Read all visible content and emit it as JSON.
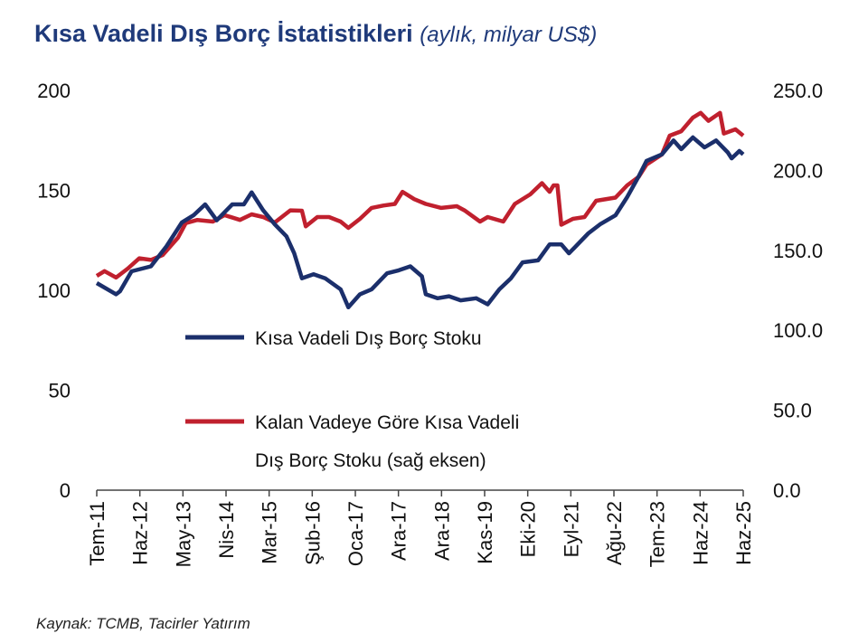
{
  "title": {
    "main": "Kısa Vadeli Dış Borç İstatistikleri",
    "sub": "(aylık, milyar US$)"
  },
  "source": "Kaynak: TCMB, Tacirler Yatırım",
  "chart_data": {
    "type": "line",
    "title": "Kısa Vadeli Dış Borç İstatistikleri (aylık, milyar US$)",
    "x_unit": "months since Tem-11",
    "x_range": [
      0,
      167
    ],
    "x_ticks": [
      "Tem-11",
      "Haz-12",
      "May-13",
      "Nis-14",
      "Mar-15",
      "Şub-16",
      "Oca-17",
      "Ara-17",
      "Ara-18",
      "Kas-19",
      "Eki-20",
      "Eyl-21",
      "Ağu-22",
      "Tem-23",
      "Haz-24",
      "Haz-25"
    ],
    "y_left": {
      "range": [
        0,
        200
      ],
      "ticks": [
        "0",
        "50",
        "100",
        "150",
        "200"
      ]
    },
    "y_right": {
      "range": [
        0,
        250
      ],
      "ticks": [
        "0.0",
        "50.0",
        "100.0",
        "150.0",
        "200.0",
        "250.0"
      ]
    },
    "grid": false,
    "legend_placement": "center-left",
    "series": [
      {
        "name": "Kısa Vadeli Dış Borç Stoku",
        "axis": "left",
        "color": "#1b2f6b",
        "points": [
          [
            0,
            103.6
          ],
          [
            5,
            98
          ],
          [
            6,
            99.5
          ],
          [
            9,
            109.5
          ],
          [
            14,
            112
          ],
          [
            18,
            122
          ],
          [
            22,
            134
          ],
          [
            25,
            137.5
          ],
          [
            28,
            143
          ],
          [
            31,
            135
          ],
          [
            35,
            143
          ],
          [
            38,
            143
          ],
          [
            40,
            149
          ],
          [
            43,
            140
          ],
          [
            46,
            133
          ],
          [
            49,
            127
          ],
          [
            51,
            118.5
          ],
          [
            53,
            106
          ],
          [
            56,
            108
          ],
          [
            59,
            106
          ],
          [
            63,
            100.5
          ],
          [
            65,
            91.5
          ],
          [
            68,
            98
          ],
          [
            71,
            100.5
          ],
          [
            75,
            108.5
          ],
          [
            78,
            110
          ],
          [
            81,
            112
          ],
          [
            84,
            107
          ],
          [
            85,
            98
          ],
          [
            88,
            96
          ],
          [
            91,
            97
          ],
          [
            94,
            95
          ],
          [
            98,
            96
          ],
          [
            101,
            93
          ],
          [
            104,
            100.5
          ],
          [
            107,
            106
          ],
          [
            110,
            114
          ],
          [
            114,
            115
          ],
          [
            117,
            123
          ],
          [
            120,
            123
          ],
          [
            122,
            118.5
          ],
          [
            127,
            128.5
          ],
          [
            130,
            133
          ],
          [
            134,
            137.5
          ],
          [
            137,
            146.6
          ],
          [
            140,
            157
          ],
          [
            142,
            164.7
          ],
          [
            146,
            168
          ],
          [
            149,
            175
          ],
          [
            151,
            170.6
          ],
          [
            154,
            176.5
          ],
          [
            157,
            171.5
          ],
          [
            160,
            175
          ],
          [
            163,
            169
          ],
          [
            164,
            166
          ],
          [
            166,
            169.7
          ],
          [
            167,
            168
          ]
        ]
      },
      {
        "name": "Kalan Vadeye Göre Kısa Vadeli Dış Borç Stoku (sağ eksen)",
        "axis": "right",
        "color": "#c0202e",
        "points": [
          [
            0,
            134
          ],
          [
            2,
            137
          ],
          [
            5,
            133
          ],
          [
            8,
            138.6
          ],
          [
            11,
            145
          ],
          [
            14,
            144
          ],
          [
            17,
            147
          ],
          [
            21,
            158
          ],
          [
            23,
            167
          ],
          [
            26,
            169
          ],
          [
            30,
            168
          ],
          [
            33,
            172
          ],
          [
            37,
            169
          ],
          [
            40,
            172.5
          ],
          [
            43,
            170.8
          ],
          [
            46,
            167.4
          ],
          [
            50,
            175
          ],
          [
            53,
            174.8
          ],
          [
            54,
            165
          ],
          [
            57,
            170.8
          ],
          [
            60,
            170.8
          ],
          [
            63,
            168
          ],
          [
            65,
            164
          ],
          [
            68,
            169.7
          ],
          [
            71,
            176.5
          ],
          [
            74,
            178
          ],
          [
            77,
            179
          ],
          [
            79,
            186.6
          ],
          [
            82,
            182
          ],
          [
            85,
            179
          ],
          [
            89,
            176.5
          ],
          [
            93,
            177.6
          ],
          [
            95,
            175
          ],
          [
            99,
            168
          ],
          [
            101,
            170.8
          ],
          [
            105,
            168
          ],
          [
            108,
            179
          ],
          [
            112,
            185
          ],
          [
            115,
            192
          ],
          [
            117,
            186.6
          ],
          [
            118,
            190.6
          ],
          [
            119,
            190.6
          ],
          [
            120,
            166
          ],
          [
            123,
            169.7
          ],
          [
            126,
            170.8
          ],
          [
            129,
            181
          ],
          [
            134,
            183
          ],
          [
            137,
            190.6
          ],
          [
            140,
            196
          ],
          [
            142,
            203.6
          ],
          [
            146,
            210
          ],
          [
            148,
            221.7
          ],
          [
            151,
            224.5
          ],
          [
            154,
            233
          ],
          [
            156,
            236
          ],
          [
            158,
            231
          ],
          [
            161,
            236
          ],
          [
            162,
            223
          ],
          [
            165,
            225.7
          ],
          [
            167,
            221.7
          ]
        ]
      }
    ],
    "legend": {
      "line1": "Kısa Vadeli Dış Borç Stoku",
      "line2a": "Kalan Vadeye Göre Kısa Vadeli",
      "line2b": "Dış Borç Stoku (sağ eksen)"
    }
  }
}
